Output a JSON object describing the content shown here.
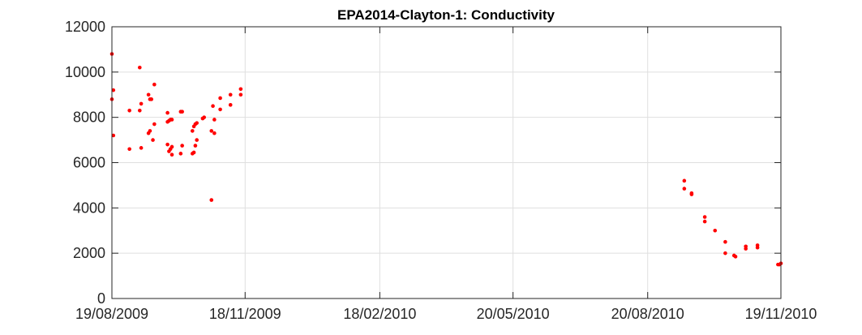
{
  "chart_data": {
    "type": "scatter",
    "title": "EPA2014-Clayton-1: Conductivity",
    "xlabel": "",
    "ylabel": "",
    "ylim": [
      0,
      12000
    ],
    "xlim": [
      "2009-08-19",
      "2010-11-19"
    ],
    "grid": true,
    "legend": "none",
    "marker_color": "#ff0000",
    "y_ticks": [
      0,
      2000,
      4000,
      6000,
      8000,
      10000,
      12000
    ],
    "y_tick_labels": [
      "0",
      "2000",
      "4000",
      "6000",
      "8000",
      "10000",
      "12000"
    ],
    "x_ticks": [
      "2009-08-19",
      "2009-11-18",
      "2010-02-18",
      "2010-05-20",
      "2010-08-20",
      "2010-11-19"
    ],
    "x_tick_labels": [
      "19/08/2009",
      "18/11/2009",
      "18/02/2010",
      "20/05/2010",
      "20/08/2010",
      "19/11/2010"
    ],
    "series": [
      {
        "points": [
          [
            "2009-08-19",
            10800
          ],
          [
            "2009-08-19",
            8800
          ],
          [
            "2009-08-20",
            9200
          ],
          [
            "2009-08-20",
            7200
          ],
          [
            "2009-08-31",
            8300
          ],
          [
            "2009-08-31",
            6600
          ],
          [
            "2009-09-07",
            10200
          ],
          [
            "2009-09-07",
            8300
          ],
          [
            "2009-09-08",
            8600
          ],
          [
            "2009-09-08",
            6650
          ],
          [
            "2009-09-13",
            9000
          ],
          [
            "2009-09-13",
            7300
          ],
          [
            "2009-09-14",
            8800
          ],
          [
            "2009-09-14",
            7400
          ],
          [
            "2009-09-15",
            8800
          ],
          [
            "2009-09-16",
            7000
          ],
          [
            "2009-09-17",
            9450
          ],
          [
            "2009-09-17",
            7700
          ],
          [
            "2009-09-26",
            8200
          ],
          [
            "2009-09-26",
            7800
          ],
          [
            "2009-09-26",
            6800
          ],
          [
            "2009-09-27",
            7850
          ],
          [
            "2009-09-27",
            6500
          ],
          [
            "2009-09-28",
            7900
          ],
          [
            "2009-09-28",
            6600
          ],
          [
            "2009-09-29",
            7900
          ],
          [
            "2009-09-29",
            6700
          ],
          [
            "2009-09-29",
            6350
          ],
          [
            "2009-10-05",
            8250
          ],
          [
            "2009-10-05",
            6400
          ],
          [
            "2009-10-06",
            8250
          ],
          [
            "2009-10-06",
            6750
          ],
          [
            "2009-10-13",
            6400
          ],
          [
            "2009-10-13",
            7400
          ],
          [
            "2009-10-14",
            6450
          ],
          [
            "2009-10-14",
            7600
          ],
          [
            "2009-10-15",
            6750
          ],
          [
            "2009-10-15",
            7700
          ],
          [
            "2009-10-16",
            7000
          ],
          [
            "2009-10-16",
            7750
          ],
          [
            "2009-10-20",
            7950
          ],
          [
            "2009-10-21",
            8000
          ],
          [
            "2009-10-26",
            4350
          ],
          [
            "2009-10-26",
            7400
          ],
          [
            "2009-10-27",
            8500
          ],
          [
            "2009-10-28",
            7900
          ],
          [
            "2009-10-28",
            7300
          ],
          [
            "2009-11-01",
            8850
          ],
          [
            "2009-11-01",
            8350
          ],
          [
            "2009-11-08",
            9000
          ],
          [
            "2009-11-08",
            8550
          ],
          [
            "2009-11-15",
            9250
          ],
          [
            "2009-11-15",
            9000
          ],
          [
            "2010-09-14",
            5200
          ],
          [
            "2010-09-14",
            4850
          ],
          [
            "2010-09-19",
            4650
          ],
          [
            "2010-09-19",
            4600
          ],
          [
            "2010-09-28",
            3600
          ],
          [
            "2010-09-28",
            3400
          ],
          [
            "2010-10-05",
            3000
          ],
          [
            "2010-10-12",
            2500
          ],
          [
            "2010-10-12",
            2000
          ],
          [
            "2010-10-18",
            1900
          ],
          [
            "2010-10-19",
            1850
          ],
          [
            "2010-10-26",
            2300
          ],
          [
            "2010-10-26",
            2200
          ],
          [
            "2010-11-03",
            2350
          ],
          [
            "2010-11-03",
            2250
          ],
          [
            "2010-11-17",
            1500
          ],
          [
            "2010-11-18",
            1500
          ],
          [
            "2010-11-19",
            1550
          ]
        ]
      }
    ]
  }
}
